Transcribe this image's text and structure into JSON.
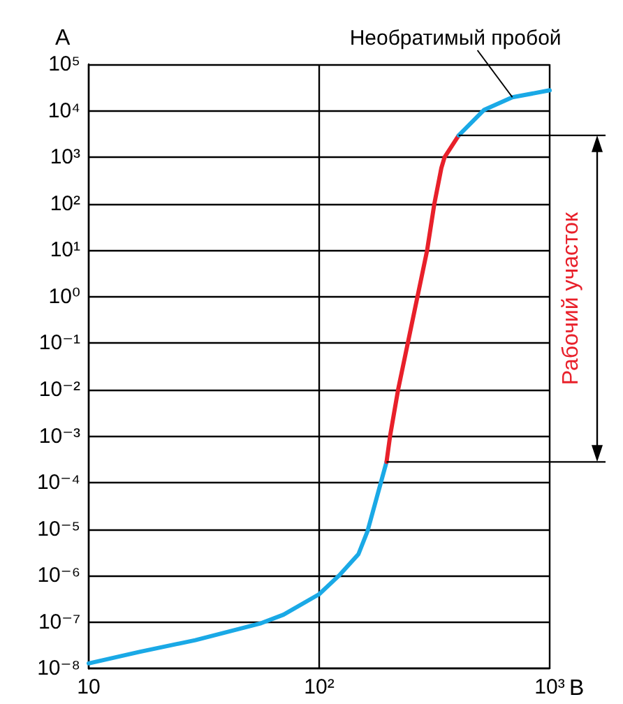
{
  "chart_data": {
    "type": "line",
    "xlabel": "В",
    "ylabel": "А",
    "log": "xy",
    "grid": true,
    "marker": "none",
    "line_style": "solid",
    "xlim": [
      10,
      1000
    ],
    "xticks": [
      10,
      {
        "value": 100,
        "label": "10²"
      },
      {
        "value": 1000,
        "label": "10³"
      }
    ],
    "ylim": [
      1e-08,
      100000
    ],
    "yticks": [
      {
        "value": 1e-08,
        "label": "10⁻⁸"
      },
      {
        "value": 1e-07,
        "label": "10⁻⁷"
      },
      {
        "value": 1e-06,
        "label": "10⁻⁶"
      },
      {
        "value": 1e-05,
        "label": "10⁻⁵"
      },
      {
        "value": 0.0001,
        "label": "10⁻⁴"
      },
      {
        "value": 0.001,
        "label": "10⁻³"
      },
      {
        "value": 0.01,
        "label": "10⁻²"
      },
      {
        "value": 0.1,
        "label": "10⁻¹"
      },
      {
        "value": 1,
        "label": "10⁰"
      },
      {
        "value": 10,
        "label": "10¹"
      },
      {
        "value": 100,
        "label": "10²"
      },
      {
        "value": 1000,
        "label": "10³"
      },
      {
        "value": 10000,
        "label": "10⁴"
      },
      {
        "value": 100000,
        "label": "10⁵"
      }
    ],
    "series": [
      {
        "color": "#1aa9e6",
        "x": [
          10,
          16.6,
          29,
          56,
          70,
          100,
          123,
          148,
          162,
          187,
          196
        ],
        "values": [
          1.3e-08,
          2.3e-08,
          4.1e-08,
          9.5e-08,
          1.45e-07,
          4e-07,
          1.05e-06,
          2.9e-06,
          9e-06,
          0.00012,
          0.00028
        ]
      },
      {
        "color": "#e8202a",
        "x": [
          196,
          203,
          220,
          294,
          316,
          339,
          350,
          403
        ],
        "values": [
          0.00028,
          0.001,
          0.01,
          10,
          100,
          590,
          1000,
          2950
        ]
      },
      {
        "color": "#1aa9e6",
        "x": [
          403,
          520,
          689,
          1000
        ],
        "values": [
          2950,
          10500,
          19500,
          27500
        ]
      }
    ],
    "ref_lines": [
      {
        "axis": "y",
        "value": 2950
      },
      {
        "axis": "y",
        "value": 0.00028
      }
    ],
    "annotations": [
      {
        "text": "Необратимый пробой",
        "x": 689,
        "y": 19500
      },
      {
        "text": "Рабочий участок"
      }
    ]
  }
}
